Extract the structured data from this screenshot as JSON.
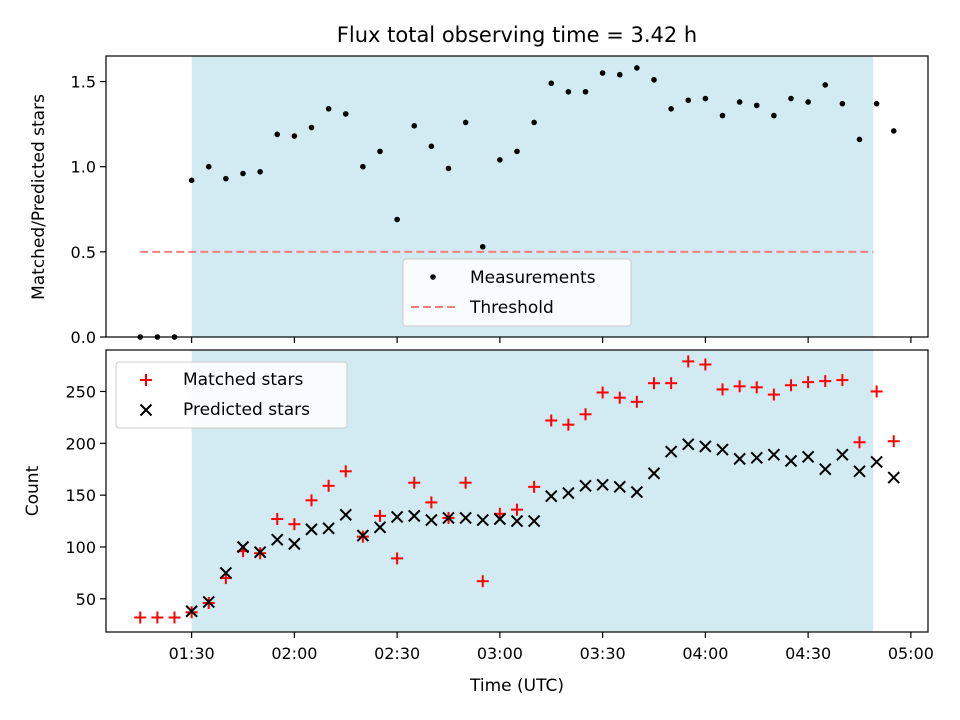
{
  "figure": {
    "title": "Flux total observing time = 3.42 h",
    "xlabel": "Time (UTC)"
  },
  "colors": {
    "shade": "#add8e6",
    "measurement": "#000000",
    "threshold": "#f08080",
    "matched": "#ff0000",
    "predicted": "#000000"
  },
  "chart_data": [
    {
      "type": "scatter",
      "panel": "top",
      "ylabel": "Matched/Predicted stars",
      "xlim": [
        "01:05",
        "05:05"
      ],
      "ylim": [
        0,
        1.65
      ],
      "yticks": [
        0.0,
        0.5,
        1.0,
        1.5
      ],
      "ytick_labels": [
        "0.0",
        "0.5",
        "1.0",
        "1.5"
      ],
      "shaded_span": [
        "01:30",
        "04:49"
      ],
      "legend": {
        "placement": "lower center",
        "entries": [
          "Measurements",
          "Threshold"
        ]
      },
      "series": [
        {
          "name": "Measurements",
          "marker": "dot",
          "x": [
            "01:15",
            "01:20",
            "01:25",
            "01:30",
            "01:35",
            "01:40",
            "01:45",
            "01:50",
            "01:55",
            "02:00",
            "02:05",
            "02:10",
            "02:15",
            "02:20",
            "02:25",
            "02:30",
            "02:35",
            "02:40",
            "02:45",
            "02:50",
            "02:55",
            "03:00",
            "03:05",
            "03:10",
            "03:15",
            "03:20",
            "03:25",
            "03:30",
            "03:35",
            "03:40",
            "03:45",
            "03:50",
            "03:55",
            "04:00",
            "04:05",
            "04:10",
            "04:15",
            "04:20",
            "04:25",
            "04:30",
            "04:35",
            "04:40",
            "04:45",
            "04:50",
            "04:55"
          ],
          "y": [
            0.0,
            0.0,
            0.0,
            0.92,
            1.0,
            0.93,
            0.96,
            0.97,
            1.19,
            1.18,
            1.23,
            1.34,
            1.31,
            1.0,
            1.09,
            0.69,
            1.24,
            1.12,
            0.99,
            1.26,
            0.53,
            1.04,
            1.09,
            1.26,
            1.49,
            1.44,
            1.44,
            1.55,
            1.54,
            1.58,
            1.51,
            1.34,
            1.39,
            1.4,
            1.3,
            1.38,
            1.36,
            1.3,
            1.4,
            1.38,
            1.48,
            1.37,
            1.16,
            1.37,
            1.21
          ]
        },
        {
          "name": "Threshold",
          "style": "dashed",
          "x": [
            "01:15",
            "04:49"
          ],
          "y": [
            0.5,
            0.5
          ]
        }
      ]
    },
    {
      "type": "scatter",
      "panel": "bottom",
      "ylabel": "Count",
      "xlim": [
        "01:05",
        "05:05"
      ],
      "ylim": [
        18,
        290
      ],
      "yticks": [
        50,
        100,
        150,
        200,
        250
      ],
      "ytick_labels": [
        "50",
        "100",
        "150",
        "200",
        "250"
      ],
      "xticks": [
        "01:30",
        "02:00",
        "02:30",
        "03:00",
        "03:30",
        "04:00",
        "04:30",
        "05:00"
      ],
      "xtick_labels": [
        "01:30",
        "02:00",
        "02:30",
        "03:00",
        "03:30",
        "04:00",
        "04:30",
        "05:00"
      ],
      "shaded_span": [
        "01:30",
        "04:49"
      ],
      "legend": {
        "placement": "upper left",
        "entries": [
          "Matched stars",
          "Predicted stars"
        ]
      },
      "series": [
        {
          "name": "Matched stars",
          "marker": "plus",
          "x": [
            "01:15",
            "01:20",
            "01:25",
            "01:30",
            "01:35",
            "01:40",
            "01:45",
            "01:50",
            "01:55",
            "02:00",
            "02:05",
            "02:10",
            "02:15",
            "02:20",
            "02:25",
            "02:30",
            "02:35",
            "02:40",
            "02:45",
            "02:50",
            "02:55",
            "03:00",
            "03:05",
            "03:10",
            "03:15",
            "03:20",
            "03:25",
            "03:30",
            "03:35",
            "03:40",
            "03:45",
            "03:50",
            "03:55",
            "04:00",
            "04:05",
            "04:10",
            "04:15",
            "04:20",
            "04:25",
            "04:30",
            "04:35",
            "04:40",
            "04:45",
            "04:50",
            "04:55"
          ],
          "y": [
            32,
            32,
            32,
            37,
            46,
            70,
            96,
            94,
            127,
            122,
            145,
            159,
            173,
            110,
            130,
            89,
            162,
            143,
            128,
            162,
            67,
            132,
            136,
            158,
            222,
            218,
            228,
            249,
            244,
            240,
            258,
            258,
            279,
            276,
            252,
            255,
            254,
            247,
            256,
            259,
            260,
            261,
            201,
            250,
            202
          ]
        },
        {
          "name": "Predicted stars",
          "marker": "x",
          "x": [
            "01:30",
            "01:35",
            "01:40",
            "01:45",
            "01:50",
            "01:55",
            "02:00",
            "02:05",
            "02:10",
            "02:15",
            "02:20",
            "02:25",
            "02:30",
            "02:35",
            "02:40",
            "02:45",
            "02:50",
            "02:55",
            "03:00",
            "03:05",
            "03:10",
            "03:15",
            "03:20",
            "03:25",
            "03:30",
            "03:35",
            "03:40",
            "03:45",
            "03:50",
            "03:55",
            "04:00",
            "04:05",
            "04:10",
            "04:15",
            "04:20",
            "04:25",
            "04:30",
            "04:35",
            "04:40",
            "04:45",
            "04:50",
            "04:55"
          ],
          "y": [
            38,
            47,
            75,
            100,
            95,
            107,
            103,
            117,
            118,
            131,
            111,
            119,
            129,
            130,
            126,
            128,
            128,
            126,
            127,
            125,
            125,
            149,
            152,
            159,
            160,
            158,
            153,
            171,
            192,
            199,
            197,
            194,
            185,
            186,
            189,
            183,
            187,
            175,
            189,
            173,
            182,
            167
          ]
        }
      ]
    }
  ]
}
